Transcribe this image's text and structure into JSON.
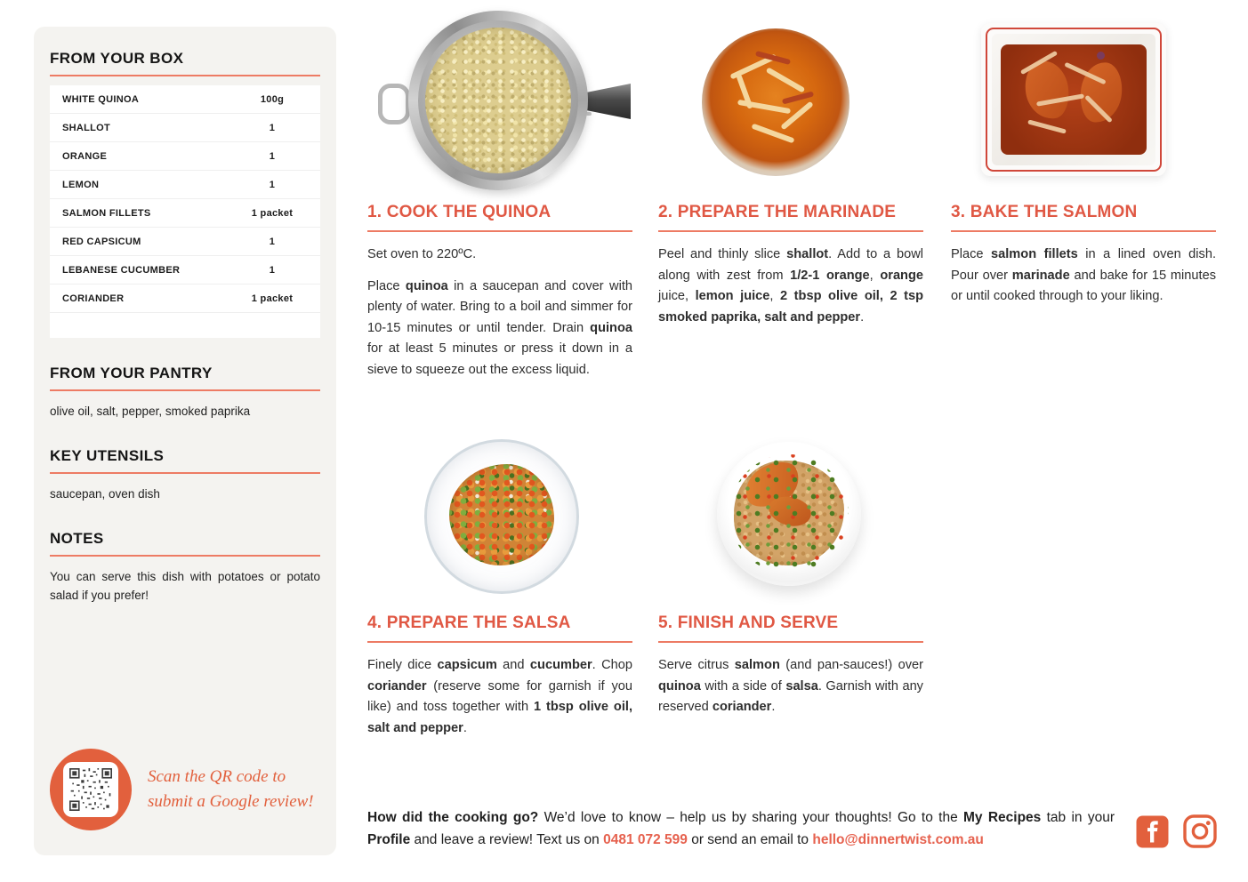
{
  "colors": {
    "accent_heading": "#e05844",
    "accent_rule": "#ed7b64",
    "accent_badge": "#e2603d",
    "sidebar_bg": "#f4f3f0"
  },
  "sidebar": {
    "box_title": "FROM YOUR BOX",
    "ingredients": [
      {
        "name": "WHITE QUINOA",
        "qty": "100g"
      },
      {
        "name": "SHALLOT",
        "qty": "1"
      },
      {
        "name": "ORANGE",
        "qty": "1"
      },
      {
        "name": "LEMON",
        "qty": "1"
      },
      {
        "name": "SALMON FILLETS",
        "qty": "1 packet"
      },
      {
        "name": "RED CAPSICUM",
        "qty": "1"
      },
      {
        "name": "LEBANESE CUCUMBER",
        "qty": "1"
      },
      {
        "name": "CORIANDER",
        "qty": "1 packet"
      }
    ],
    "pantry_title": "FROM YOUR PANTRY",
    "pantry_text": "olive oil, salt, pepper, smoked paprika",
    "utensils_title": "KEY UTENSILS",
    "utensils_text": "saucepan, oven dish",
    "notes_title": "NOTES",
    "notes_text": "You can serve this dish with potatoes or potato salad if you prefer!",
    "qr": {
      "line1": "Scan the QR code to",
      "line2": "submit a Google review!"
    }
  },
  "steps": [
    {
      "title": "1. COOK THE QUINOA",
      "photo": "cooked quinoa in a sieve over saucepan",
      "paragraphs": [
        [
          {
            "t": "Set oven to 220ºC."
          }
        ],
        [
          {
            "t": "Place ",
            "b": false
          },
          {
            "t": "quinoa",
            "b": true
          },
          {
            "t": " in a saucepan and cover with plenty of water. Bring to a boil and simmer for 10-15 minutes or until tender. Drain "
          },
          {
            "t": "quinoa",
            "b": true
          },
          {
            "t": " for at least 5 minutes or press it down in a sieve to squeeze out the excess liquid."
          }
        ]
      ]
    },
    {
      "title": "2. PREPARE THE MARINADE",
      "photo": "bowl of orange marinade with sliced shallot",
      "paragraphs": [
        [
          {
            "t": "Peel and thinly slice "
          },
          {
            "t": "shallot",
            "b": true
          },
          {
            "t": ". Add to a bowl along with zest from "
          },
          {
            "t": "1/2-1 orange",
            "b": true
          },
          {
            "t": ", "
          },
          {
            "t": "orange",
            "b": true
          },
          {
            "t": " juice, "
          },
          {
            "t": "lemon juice",
            "b": true
          },
          {
            "t": ", "
          },
          {
            "t": "2 tbsp olive oil, 2 tsp smoked paprika, salt and pepper",
            "b": true
          },
          {
            "t": "."
          }
        ]
      ]
    },
    {
      "title": "3. BAKE THE SALMON",
      "photo": "salmon fillets with marinade in lined oven dish",
      "paragraphs": [
        [
          {
            "t": "Place "
          },
          {
            "t": "salmon fillets",
            "b": true
          },
          {
            "t": " in a lined oven dish. Pour over "
          },
          {
            "t": "marinade",
            "b": true
          },
          {
            "t": " and bake for 15 minutes or until cooked through to your liking."
          }
        ]
      ]
    },
    {
      "title": "4. PREPARE THE SALSA",
      "photo": "glass bowl of diced vegetable salsa",
      "paragraphs": [
        [
          {
            "t": "Finely dice "
          },
          {
            "t": "capsicum",
            "b": true
          },
          {
            "t": " and "
          },
          {
            "t": "cucumber",
            "b": true
          },
          {
            "t": ". Chop "
          },
          {
            "t": "coriander",
            "b": true
          },
          {
            "t": " (reserve some for garnish if you like) and toss together with "
          },
          {
            "t": "1 tbsp olive oil, salt and pepper",
            "b": true
          },
          {
            "t": "."
          }
        ]
      ]
    },
    {
      "title": "5. FINISH AND SERVE",
      "photo": "plated salmon over quinoa with salsa",
      "paragraphs": [
        [
          {
            "t": "Serve citrus "
          },
          {
            "t": "salmon",
            "b": true
          },
          {
            "t": " (and pan-sauces!) over "
          },
          {
            "t": "quinoa",
            "b": true
          },
          {
            "t": " with a side of "
          },
          {
            "t": "salsa",
            "b": true
          },
          {
            "t": ". Garnish with any reserved "
          },
          {
            "t": "coriander",
            "b": true
          },
          {
            "t": "."
          }
        ]
      ]
    }
  ],
  "footer": {
    "runs": [
      {
        "t": "How did the cooking go?",
        "b": true
      },
      {
        "t": " We’d love to know – help us by sharing your thoughts! Go to the "
      },
      {
        "t": "My Recipes",
        "b": true
      },
      {
        "t": " tab in your "
      },
      {
        "t": "Profile",
        "b": true
      },
      {
        "t": " and leave a review! Text us on "
      },
      {
        "t": "0481 072 599",
        "b": true,
        "c": "#e6614e"
      },
      {
        "t": " or send an email to "
      },
      {
        "t": "hello@dinnertwist.com.au",
        "b": true,
        "c": "#e6614e"
      }
    ],
    "phone": "0481 072 599",
    "email": "hello@dinnertwist.com.au",
    "social_icons": [
      "facebook-icon",
      "instagram-icon"
    ]
  }
}
